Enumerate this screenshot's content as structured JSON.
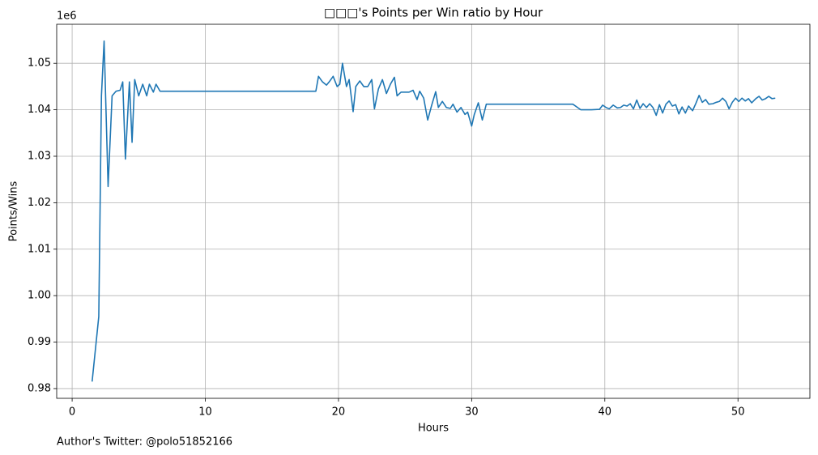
{
  "chart_data": {
    "type": "line",
    "title": "□□□'s Points per Win ratio by Hour",
    "xlabel": "Hours",
    "ylabel": "Points/Wins",
    "y_offset_label": "1e6",
    "footer": "Author's Twitter: @polo51852166",
    "grid": true,
    "xlim": [
      -1.16,
      55.4
    ],
    "xticks": [
      0,
      10,
      20,
      30,
      40,
      50
    ],
    "ylim": [
      977900,
      1058400
    ],
    "yticks": [
      {
        "value": 980000,
        "label": "0.98"
      },
      {
        "value": 990000,
        "label": "0.99"
      },
      {
        "value": 1000000,
        "label": "1.00"
      },
      {
        "value": 1010000,
        "label": "1.01"
      },
      {
        "value": 1020000,
        "label": "1.02"
      },
      {
        "value": 1030000,
        "label": "1.03"
      },
      {
        "value": 1040000,
        "label": "1.04"
      },
      {
        "value": 1050000,
        "label": "1.05"
      }
    ],
    "series": [
      {
        "color": "#1f77b4",
        "x": [
          1.5,
          2.0,
          2.2,
          2.4,
          2.7,
          3.0,
          3.3,
          3.6,
          3.8,
          4.0,
          4.3,
          4.5,
          4.7,
          5.0,
          5.3,
          5.6,
          5.8,
          6.1,
          6.3,
          6.6,
          18.3,
          18.5,
          18.8,
          19.1,
          19.3,
          19.6,
          19.9,
          20.1,
          20.3,
          20.6,
          20.8,
          21.1,
          21.3,
          21.6,
          21.9,
          22.2,
          22.5,
          22.7,
          23.0,
          23.3,
          23.6,
          23.9,
          24.2,
          24.4,
          24.7,
          25.0,
          25.3,
          25.6,
          25.9,
          26.1,
          26.4,
          26.7,
          27.0,
          27.3,
          27.5,
          27.8,
          28.1,
          28.4,
          28.6,
          28.9,
          29.2,
          29.5,
          29.7,
          30.0,
          30.2,
          30.5,
          30.8,
          31.1,
          37.6,
          38.2,
          39.0,
          39.6,
          39.84,
          40.09,
          40.33,
          40.63,
          40.94,
          41.18,
          41.42,
          41.67,
          41.91,
          42.15,
          42.4,
          42.64,
          42.88,
          43.13,
          43.37,
          43.61,
          43.86,
          44.1,
          44.34,
          44.59,
          44.83,
          45.07,
          45.32,
          45.56,
          45.8,
          46.05,
          46.29,
          46.59,
          46.84,
          47.08,
          47.32,
          47.57,
          47.81,
          48.11,
          48.36,
          48.6,
          48.84,
          49.09,
          49.33,
          49.57,
          49.82,
          50.06,
          50.3,
          50.55,
          50.79,
          51.03,
          51.34,
          51.58,
          51.82,
          52.07,
          52.31,
          52.55,
          52.8
        ],
        "values": [
          981500,
          995500,
          1043000,
          1054800,
          1023500,
          1043000,
          1044000,
          1044200,
          1046000,
          1029400,
          1046000,
          1033000,
          1046500,
          1043000,
          1045500,
          1043000,
          1045500,
          1043800,
          1045500,
          1044000,
          1044000,
          1047200,
          1046000,
          1045300,
          1046000,
          1047200,
          1045000,
          1045500,
          1050000,
          1045000,
          1046500,
          1039600,
          1045000,
          1046200,
          1045000,
          1045000,
          1046500,
          1040200,
          1044500,
          1046500,
          1043500,
          1045500,
          1047000,
          1043000,
          1043800,
          1043800,
          1043800,
          1044200,
          1042200,
          1044000,
          1042500,
          1037800,
          1041000,
          1043900,
          1040500,
          1041800,
          1040500,
          1040300,
          1041200,
          1039500,
          1040500,
          1039000,
          1039500,
          1036500,
          1039000,
          1041500,
          1037800,
          1041200,
          1041200,
          1040000,
          1040000,
          1040100,
          1041000,
          1040500,
          1040200,
          1041000,
          1040400,
          1040500,
          1041000,
          1040800,
          1041300,
          1040200,
          1042100,
          1040300,
          1041300,
          1040500,
          1041300,
          1040500,
          1038800,
          1041100,
          1039300,
          1041200,
          1041900,
          1040800,
          1041100,
          1039100,
          1040600,
          1039300,
          1040800,
          1039800,
          1041400,
          1043100,
          1041600,
          1042200,
          1041200,
          1041300,
          1041600,
          1041800,
          1042500,
          1041800,
          1040200,
          1041600,
          1042500,
          1041800,
          1042500,
          1041900,
          1042400,
          1041500,
          1042400,
          1042900,
          1042100,
          1042400,
          1042900,
          1042400,
          1042500
        ]
      }
    ]
  }
}
